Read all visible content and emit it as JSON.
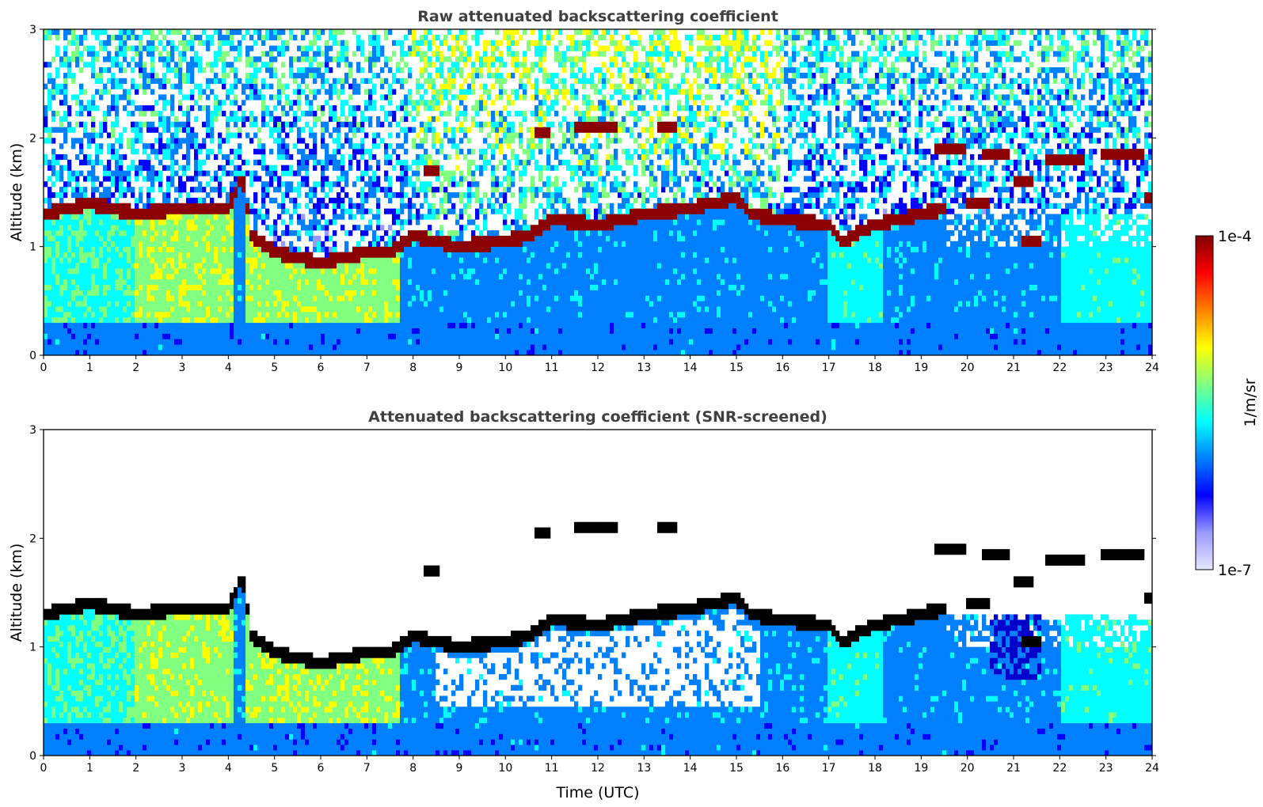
{
  "chart_data": [
    {
      "type": "heatmap",
      "title": "Raw attenuated backscattering coefficient",
      "xlabel": "",
      "ylabel": "Altitude (km)",
      "xlim": [
        0,
        24
      ],
      "ylim": [
        0,
        3
      ],
      "x_ticks": [
        "0",
        "1",
        "2",
        "3",
        "4",
        "5",
        "6",
        "7",
        "8",
        "9",
        "10",
        "11",
        "12",
        "13",
        "14",
        "15",
        "16",
        "17",
        "18",
        "19",
        "20",
        "21",
        "22",
        "23",
        "24"
      ],
      "y_ticks": [
        "0",
        "1",
        "2",
        "3"
      ],
      "screened": false
    },
    {
      "type": "heatmap",
      "title": "Attenuated backscattering coefficient (SNR-screened)",
      "xlabel": "Time (UTC)",
      "ylabel": "Altitude (km)",
      "xlim": [
        0,
        24
      ],
      "ylim": [
        0,
        3
      ],
      "x_ticks": [
        "0",
        "1",
        "2",
        "3",
        "4",
        "5",
        "6",
        "7",
        "8",
        "9",
        "10",
        "11",
        "12",
        "13",
        "14",
        "15",
        "16",
        "17",
        "18",
        "19",
        "20",
        "21",
        "22",
        "23",
        "24"
      ],
      "y_ticks": [
        "0",
        "1",
        "2",
        "3"
      ],
      "screened": true
    }
  ],
  "colorbar": {
    "label": "1/m/sr",
    "max_label": "1e-4",
    "min_label": "1e-7",
    "scale": "log",
    "colors": [
      "#e6e6ff",
      "#9999ff",
      "#0000ff",
      "#0080ff",
      "#00ffff",
      "#80ff80",
      "#ffff00",
      "#ff8000",
      "#ff0000",
      "#800000"
    ]
  },
  "cloud_layers": {
    "boundary_layer_top_km": [
      [
        0,
        1.3
      ],
      [
        0.5,
        1.35
      ],
      [
        1,
        1.4
      ],
      [
        2,
        1.3
      ],
      [
        3,
        1.35
      ],
      [
        4,
        1.35
      ],
      [
        4.3,
        1.65
      ],
      [
        4.5,
        1.1
      ],
      [
        5,
        0.95
      ],
      [
        6,
        0.85
      ],
      [
        7,
        0.95
      ],
      [
        7.5,
        0.95
      ],
      [
        8,
        1.1
      ],
      [
        9,
        1.0
      ],
      [
        10,
        1.05
      ],
      [
        10.5,
        1.1
      ],
      [
        11,
        1.25
      ],
      [
        12,
        1.2
      ],
      [
        13,
        1.3
      ],
      [
        14,
        1.35
      ],
      [
        15,
        1.45
      ],
      [
        15.3,
        1.3
      ],
      [
        16,
        1.25
      ],
      [
        17,
        1.2
      ],
      [
        17.3,
        1.05
      ],
      [
        18,
        1.2
      ],
      [
        19,
        1.3
      ],
      [
        19.5,
        1.35
      ]
    ],
    "elevated_segments_km": [
      [
        10.6,
        11.0,
        2.05
      ],
      [
        11.5,
        12.4,
        2.1
      ],
      [
        13.3,
        13.7,
        2.1
      ],
      [
        8.2,
        8.6,
        1.7
      ],
      [
        19.3,
        20.0,
        1.9
      ],
      [
        20.3,
        20.9,
        1.85
      ],
      [
        21.0,
        21.4,
        1.6
      ],
      [
        21.7,
        22.5,
        1.8
      ],
      [
        22.9,
        23.8,
        1.85
      ],
      [
        23.8,
        24,
        1.45
      ],
      [
        20.0,
        20.5,
        1.4
      ],
      [
        21.2,
        21.6,
        1.05
      ]
    ]
  }
}
